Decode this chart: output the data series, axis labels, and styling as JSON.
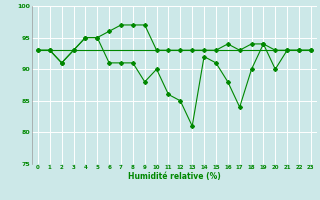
{
  "xlabel": "Humidité relative (%)",
  "background_color": "#cce8e8",
  "grid_color": "#ffffff",
  "line_color": "#008800",
  "ylim": [
    75,
    100
  ],
  "xlim": [
    -0.5,
    23.5
  ],
  "yticks": [
    75,
    80,
    85,
    90,
    95,
    100
  ],
  "xticks": [
    0,
    1,
    2,
    3,
    4,
    5,
    6,
    7,
    8,
    9,
    10,
    11,
    12,
    13,
    14,
    15,
    16,
    17,
    18,
    19,
    20,
    21,
    22,
    23
  ],
  "line_flat_x": [
    0,
    1,
    2,
    3,
    4,
    5,
    6,
    7,
    8,
    9,
    10,
    11,
    12,
    13,
    14,
    15,
    16,
    17,
    18,
    19,
    20,
    21,
    22,
    23
  ],
  "line_flat_y": [
    93,
    93,
    93,
    93,
    93,
    93,
    93,
    93,
    93,
    93,
    93,
    93,
    93,
    93,
    93,
    93,
    93,
    93,
    93,
    93,
    93,
    93,
    93,
    93
  ],
  "line_top_x": [
    0,
    1,
    2,
    3,
    4,
    5,
    6,
    7,
    8,
    9,
    10,
    11,
    12,
    13,
    14,
    15,
    16,
    17,
    18,
    19,
    20,
    21,
    22,
    23
  ],
  "line_top_y": [
    93,
    93,
    91,
    93,
    95,
    95,
    96,
    97,
    97,
    97,
    93,
    93,
    93,
    93,
    93,
    93,
    94,
    93,
    94,
    94,
    93,
    93,
    93,
    93
  ],
  "line_dip_x": [
    0,
    1,
    2,
    3,
    4,
    5,
    6,
    7,
    8,
    9,
    10,
    11,
    12,
    13,
    14,
    15,
    16,
    17,
    18,
    19,
    20,
    21,
    22,
    23
  ],
  "line_dip_y": [
    93,
    93,
    91,
    93,
    95,
    95,
    91,
    91,
    91,
    88,
    90,
    86,
    85,
    81,
    92,
    91,
    88,
    84,
    90,
    94,
    90,
    93,
    93,
    93
  ]
}
